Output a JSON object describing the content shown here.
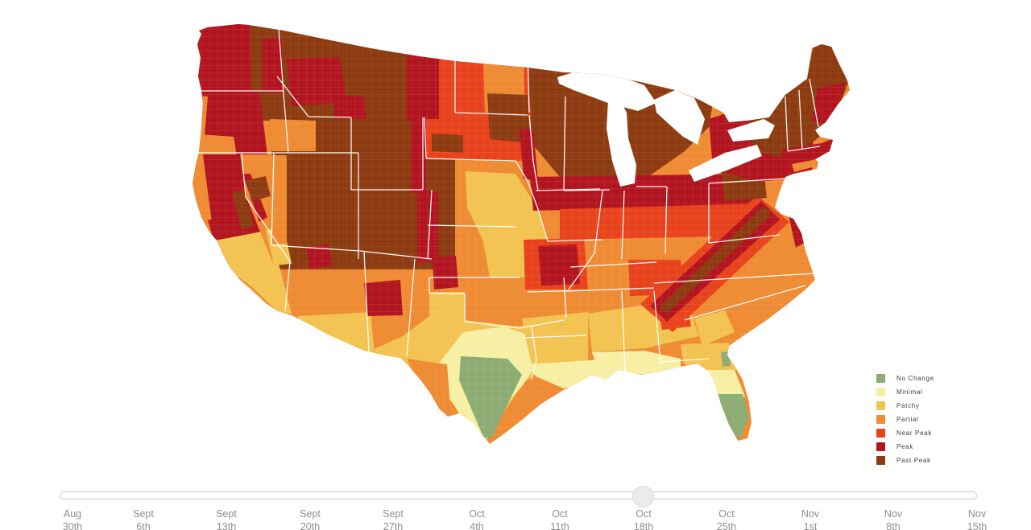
{
  "app": {
    "background_color": "#ffffff"
  },
  "map": {
    "description": "United States county-level fall foliage prediction choropleth",
    "border_color": "#ffffff",
    "water_color": "#ffffff",
    "regions": {
      "base-continent": "partial",
      "nw-interior": "past_peak",
      "intermountain": "past_peak",
      "west-washington": "peak",
      "east-washington-band": "peak",
      "west-montana": "peak",
      "southwest-montana": "peak",
      "western-oregon": "peak",
      "oregon-coast": "partial",
      "southwest-oregon": "partial",
      "boise-area": "partial",
      "northern-california": "peak",
      "north-california-coast": "partial",
      "sierra-brown-strip": "past_peak",
      "southern-sierra": "peak",
      "southern-california": "patchy",
      "socal-coast": "partial",
      "nevada": "partial",
      "west-nevada-strip": "peak",
      "northwest-nevada": "past_peak",
      "southern-nevada": "patchy",
      "west-utah-strip": "partial",
      "east-montana-band": "peak",
      "dakotas": "near_peak",
      "east-north-dakota": "partial",
      "dakota-east-brown": "past_peak",
      "upper-midwest-brown": "past_peak",
      "east-south-dakota-band": "peak",
      "black-hills": "past_peak",
      "front-range-wyoming": "peak",
      "front-range-colorado": "peak",
      "nebraska-kansas-gold": "patchy",
      "oklahoma-texas-gold": "patchy",
      "south-new-mexico-gold": "patchy",
      "texas-minimal": "minimal",
      "texas-green": "no_change",
      "big-bend-orange": "partial",
      "arkansas-louisiana-gold": "patchy",
      "gulf-minimal": "minimal",
      "deep-south-gold": "patchy",
      "gulf-east-minimal": "minimal",
      "north-florida-gold": "patchy",
      "central-florida-minimal": "minimal",
      "south-florida-green": "no_change",
      "cape-canaveral-green": "no_change",
      "georgia-coast-gold": "patchy",
      "north-georgia-red": "near_peak",
      "north-alabama-red": "near_peak",
      "ozarks-ring": "near_peak",
      "ozarks-core": "peak",
      "texas-panhandle-red": "peak",
      "new-mexico-north-red": "peak",
      "arizona-red-blob": "peak",
      "midwest-peak-band": "peak",
      "midwest-nearpeak-band": "near_peak",
      "appalachia-outer": "near_peak",
      "appalachia-peak": "peak",
      "appalachia-core": "past_peak",
      "north-pennsylvania-brown": "past_peak",
      "new-york": "peak",
      "upstate-new-york-brown": "past_peak",
      "northern-new-england": "past_peak",
      "maine-coast-band": "peak",
      "southern-new-england": "peak",
      "long-island": "partial",
      "mid-atlantic-coast-band": "peak",
      "lake-superior": "water",
      "lake-michigan": "water",
      "lake-huron": "water",
      "lake-erie": "water",
      "lake-ontario": "water"
    }
  },
  "legend": {
    "items": [
      {
        "key": "no_change",
        "label": "No Change",
        "color": "#8CAC74"
      },
      {
        "key": "minimal",
        "label": "Minimal",
        "color": "#F7EFA3"
      },
      {
        "key": "patchy",
        "label": "Patchy",
        "color": "#F2C351"
      },
      {
        "key": "partial",
        "label": "Partial",
        "color": "#EE8B33"
      },
      {
        "key": "near_peak",
        "label": "Near Peak",
        "color": "#E8431D"
      },
      {
        "key": "peak",
        "label": "Peak",
        "color": "#B2151F"
      },
      {
        "key": "past_peak",
        "label": "Past Peak",
        "color": "#8D3B10"
      }
    ]
  },
  "timeline": {
    "selected_index": 7,
    "selected_label": "Oct 18th",
    "ticks": [
      {
        "month": "Aug",
        "day": "30th"
      },
      {
        "month": "Sept",
        "day": "6th"
      },
      {
        "month": "Sept",
        "day": "13th"
      },
      {
        "month": "Sept",
        "day": "20th"
      },
      {
        "month": "Sept",
        "day": "27th"
      },
      {
        "month": "Oct",
        "day": "4th"
      },
      {
        "month": "Oct",
        "day": "11th"
      },
      {
        "month": "Oct",
        "day": "18th"
      },
      {
        "month": "Oct",
        "day": "25th"
      },
      {
        "month": "Nov",
        "day": "1st"
      },
      {
        "month": "Nov",
        "day": "8th"
      },
      {
        "month": "Nov",
        "day": "15th"
      }
    ]
  }
}
